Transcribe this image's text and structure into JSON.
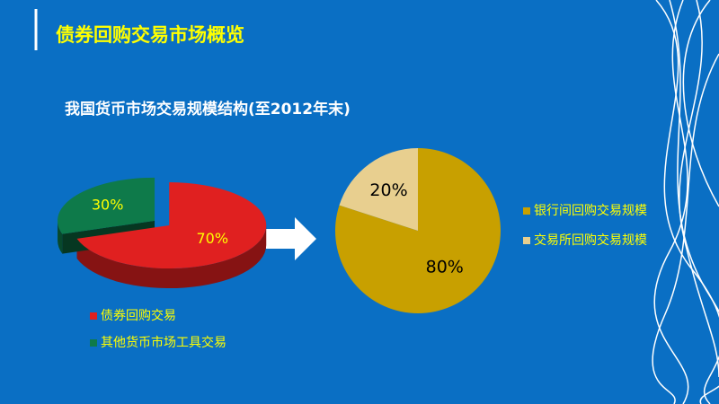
{
  "slide": {
    "title": "债券回购交易市场概览",
    "subtitle": "我国货币市场交易规模结构(至2012年末)"
  },
  "chart_data": [
    {
      "type": "pie",
      "three_d": true,
      "legend": "bottom",
      "label_color": "#ffff00",
      "categories": [
        "债券回购交易",
        "其他货币市场工具交易"
      ],
      "values": [
        70,
        30
      ],
      "value_labels": [
        "70%",
        "30%"
      ],
      "colors": [
        "#e02020",
        "#0e7a4a"
      ]
    },
    {
      "type": "pie",
      "three_d": false,
      "legend": "right",
      "label_color": "#000000",
      "categories": [
        "银行间回购交易规模",
        "交易所回购交易规模"
      ],
      "values": [
        80,
        20
      ],
      "value_labels": [
        "80%",
        "20%"
      ],
      "colors": [
        "#c8a000",
        "#e8cf8f"
      ]
    }
  ]
}
